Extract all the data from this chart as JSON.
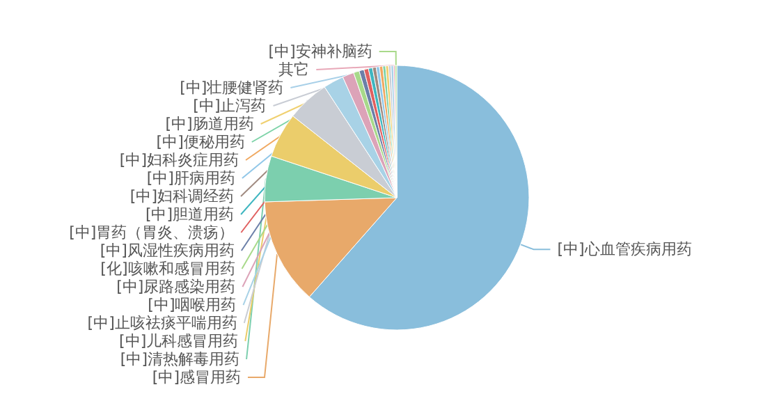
{
  "chart_data": {
    "type": "pie",
    "categories": [
      "[中]心血管疾病用药",
      "[中]感冒用药",
      "[中]清热解毒用药",
      "[中]儿科感冒用药",
      "[中]止咳祛痰平喘用药",
      "[中]咽喉用药",
      "[中]尿路感染用药",
      "[化]咳嗽和感冒用药",
      "[中]风湿性疾病用药",
      "[中]胃药（胃炎、溃疡）",
      "[中]胆道用药",
      "[中]妇科调经药",
      "[中]肝病用药",
      "[中]妇科炎症用药",
      "[中]便秘用药",
      "[中]肠道用药",
      "[中]止泻药",
      "[中]壮腰健肾药",
      "其它",
      "[中]安神补脑药"
    ],
    "values": [
      61.5,
      13,
      5.6,
      5.5,
      5.2,
      2.5,
      1.4,
      0.7,
      0.6,
      0.55,
      0.5,
      0.45,
      0.4,
      0.4,
      0.35,
      0.35,
      0.3,
      0.3,
      0.2,
      0.2
    ],
    "colors": [
      "#89bedc",
      "#e8a96a",
      "#7ccfae",
      "#ebcd6b",
      "#c9cdd4",
      "#a8d2e6",
      "#dca3b8",
      "#a8d98a",
      "#6b7fa8",
      "#e06060",
      "#3fb6c0",
      "#a08a80",
      "#91c7e8",
      "#f0a860",
      "#7dd3a8",
      "#f0d070",
      "#c8ccd4",
      "#a8d0e8",
      "#e8a8b8",
      "#a8d98a"
    ]
  }
}
